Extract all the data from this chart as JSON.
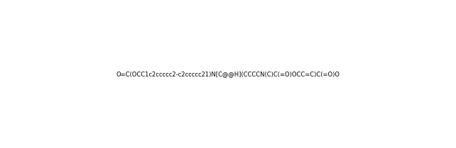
{
  "smiles": "O=C(OCC1c2ccccc2-c2ccccc21)N[C@@H](CCCCN(C)C(=O)OCC=C)C(=O)O",
  "title": "",
  "figsize": [
    6.42,
    2.09
  ],
  "dpi": 100,
  "background_color": "#ffffff"
}
